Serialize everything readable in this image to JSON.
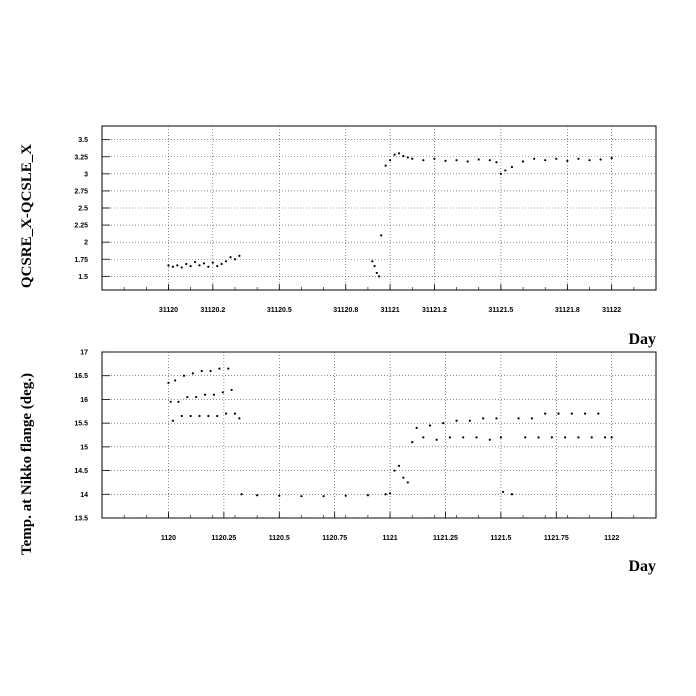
{
  "chart_data": [
    {
      "type": "scatter",
      "ylabel": "QCSRE_X-QCSLE_X",
      "xlabel": "Day",
      "xlim": [
        31119.7,
        31122.2
      ],
      "ylim": [
        1.3,
        3.7
      ],
      "x_ticks": [
        31120,
        31120.2,
        31120.5,
        31120.8,
        31121,
        31121.2,
        31121.5,
        31121.8,
        31122
      ],
      "x_tick_labels": [
        "31120",
        "31120.2",
        "31120.5",
        "31120.8",
        "31121",
        "31121.2",
        "31121.5",
        "31121.8",
        "31122"
      ],
      "y_ticks": [
        1.5,
        1.75,
        2,
        2.25,
        2.5,
        2.75,
        3,
        3.25,
        3.5
      ],
      "y_tick_labels": [
        "1.5",
        "1.75",
        "2",
        "2.25",
        "2.5",
        "2.75",
        "3",
        "3.25",
        "3.5"
      ],
      "grid": true,
      "series": [
        {
          "values": [
            [
              31120.0,
              1.66
            ],
            [
              31120.02,
              1.64
            ],
            [
              31120.04,
              1.66
            ],
            [
              31120.06,
              1.63
            ],
            [
              31120.08,
              1.68
            ],
            [
              31120.1,
              1.65
            ],
            [
              31120.12,
              1.71
            ],
            [
              31120.14,
              1.66
            ],
            [
              31120.16,
              1.69
            ],
            [
              31120.18,
              1.64
            ],
            [
              31120.2,
              1.7
            ],
            [
              31120.22,
              1.65
            ],
            [
              31120.24,
              1.68
            ],
            [
              31120.26,
              1.72
            ],
            [
              31120.28,
              1.78
            ],
            [
              31120.3,
              1.75
            ],
            [
              31120.32,
              1.8
            ],
            [
              31120.92,
              1.72
            ],
            [
              31120.93,
              1.65
            ],
            [
              31120.94,
              1.55
            ],
            [
              31120.95,
              1.5
            ],
            [
              31120.96,
              2.1
            ],
            [
              31120.98,
              3.12
            ],
            [
              31121.0,
              3.2
            ],
            [
              31121.02,
              3.28
            ],
            [
              31121.04,
              3.3
            ],
            [
              31121.06,
              3.26
            ],
            [
              31121.08,
              3.24
            ],
            [
              31121.1,
              3.22
            ],
            [
              31121.15,
              3.2
            ],
            [
              31121.2,
              3.22
            ],
            [
              31121.25,
              3.19
            ],
            [
              31121.3,
              3.2
            ],
            [
              31121.35,
              3.18
            ],
            [
              31121.4,
              3.21
            ],
            [
              31121.45,
              3.2
            ],
            [
              31121.48,
              3.17
            ],
            [
              31121.5,
              3.0
            ],
            [
              31121.52,
              3.05
            ],
            [
              31121.55,
              3.1
            ],
            [
              31121.6,
              3.18
            ],
            [
              31121.65,
              3.22
            ],
            [
              31121.7,
              3.2
            ],
            [
              31121.75,
              3.22
            ],
            [
              31121.8,
              3.19
            ],
            [
              31121.85,
              3.22
            ],
            [
              31121.9,
              3.2
            ],
            [
              31121.95,
              3.21
            ],
            [
              31122.0,
              3.23
            ]
          ]
        }
      ]
    },
    {
      "type": "scatter",
      "ylabel": "Temp. at Nikko flange (deg.)",
      "xlabel": "Day",
      "xlim": [
        31119.7,
        31122.2
      ],
      "ylim": [
        13.5,
        17.0
      ],
      "x_ticks": [
        31120,
        31120.25,
        31120.5,
        31120.75,
        31121,
        31121.25,
        31121.5,
        31121.75,
        31122
      ],
      "x_tick_labels": [
        "1120",
        "1120.25",
        "1120.5",
        "1120.75",
        "1121",
        "1121.25",
        "1121.5",
        "1121.75",
        "1122"
      ],
      "y_ticks": [
        13.5,
        14,
        14.5,
        15,
        15.5,
        16,
        16.5,
        17
      ],
      "y_tick_labels": [
        "13.5",
        "14",
        "14.5",
        "15",
        "15.5",
        "16",
        "16.5",
        "17"
      ],
      "grid": true,
      "series": [
        {
          "values": [
            [
              31120.0,
              16.35
            ],
            [
              31120.01,
              15.95
            ],
            [
              31120.02,
              15.55
            ],
            [
              31120.03,
              16.4
            ],
            [
              31120.045,
              15.95
            ],
            [
              31120.06,
              15.65
            ],
            [
              31120.07,
              16.5
            ],
            [
              31120.085,
              16.05
            ],
            [
              31120.1,
              15.65
            ],
            [
              31120.11,
              16.55
            ],
            [
              31120.125,
              16.05
            ],
            [
              31120.14,
              15.65
            ],
            [
              31120.15,
              16.6
            ],
            [
              31120.165,
              16.1
            ],
            [
              31120.18,
              15.65
            ],
            [
              31120.19,
              16.6
            ],
            [
              31120.205,
              16.1
            ],
            [
              31120.22,
              15.65
            ],
            [
              31120.23,
              16.65
            ],
            [
              31120.245,
              16.15
            ],
            [
              31120.26,
              15.7
            ],
            [
              31120.27,
              16.65
            ],
            [
              31120.285,
              16.2
            ],
            [
              31120.3,
              15.7
            ],
            [
              31120.32,
              15.6
            ],
            [
              31120.33,
              14.0
            ],
            [
              31120.4,
              13.98
            ],
            [
              31120.5,
              13.97
            ],
            [
              31120.6,
              13.96
            ],
            [
              31120.7,
              13.96
            ],
            [
              31120.8,
              13.97
            ],
            [
              31120.9,
              13.98
            ],
            [
              31120.98,
              14.0
            ],
            [
              31121.0,
              14.02
            ],
            [
              31121.02,
              14.5
            ],
            [
              31121.04,
              14.6
            ],
            [
              31121.06,
              14.35
            ],
            [
              31121.08,
              14.25
            ],
            [
              31121.1,
              15.1
            ],
            [
              31121.12,
              15.4
            ],
            [
              31121.15,
              15.2
            ],
            [
              31121.18,
              15.45
            ],
            [
              31121.21,
              15.15
            ],
            [
              31121.24,
              15.5
            ],
            [
              31121.27,
              15.2
            ],
            [
              31121.3,
              15.55
            ],
            [
              31121.33,
              15.2
            ],
            [
              31121.36,
              15.55
            ],
            [
              31121.39,
              15.2
            ],
            [
              31121.42,
              15.6
            ],
            [
              31121.45,
              15.15
            ],
            [
              31121.48,
              15.6
            ],
            [
              31121.5,
              15.2
            ],
            [
              31121.51,
              14.05
            ],
            [
              31121.55,
              14.0
            ],
            [
              31121.58,
              15.6
            ],
            [
              31121.61,
              15.2
            ],
            [
              31121.64,
              15.6
            ],
            [
              31121.67,
              15.2
            ],
            [
              31121.7,
              15.7
            ],
            [
              31121.73,
              15.2
            ],
            [
              31121.76,
              15.7
            ],
            [
              31121.79,
              15.2
            ],
            [
              31121.82,
              15.7
            ],
            [
              31121.85,
              15.2
            ],
            [
              31121.88,
              15.7
            ],
            [
              31121.91,
              15.2
            ],
            [
              31121.94,
              15.7
            ],
            [
              31121.97,
              15.2
            ],
            [
              31122.0,
              15.2
            ]
          ]
        }
      ]
    }
  ]
}
